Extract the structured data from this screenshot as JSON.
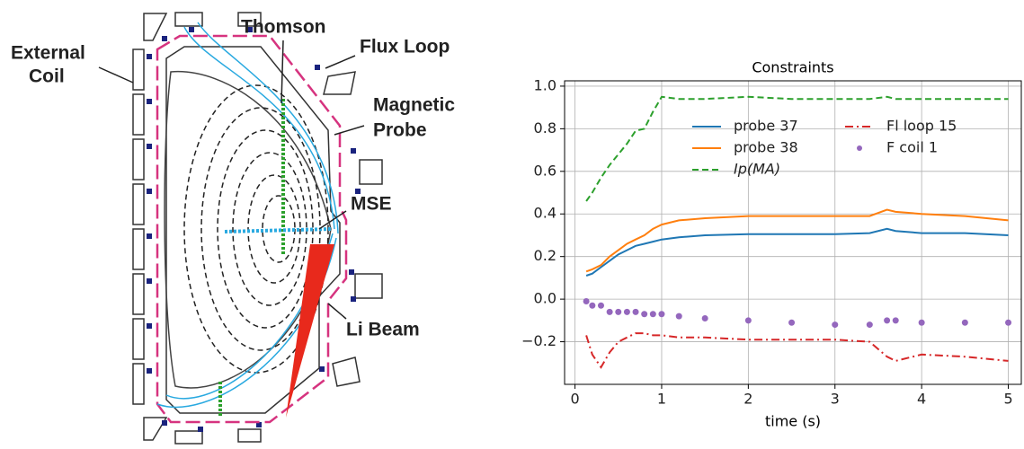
{
  "diagram": {
    "labels": [
      "External",
      "Coil",
      "Thomson",
      "Flux Loop",
      "Magnetic",
      "Probe",
      "MSE",
      "Li Beam"
    ]
  },
  "chart_data": {
    "type": "line",
    "title": "Constraints",
    "x_label": "time (s)",
    "x": [
      0.13,
      0.2,
      0.3,
      0.4,
      0.5,
      0.6,
      0.7,
      0.8,
      0.9,
      1.0,
      1.2,
      1.5,
      2.0,
      2.5,
      3.0,
      3.4,
      3.6,
      3.7,
      4.0,
      4.5,
      5.0
    ],
    "series": [
      {
        "name": "probe 37",
        "color": "#1f77b4",
        "style": "solid",
        "values": [
          0.11,
          0.12,
          0.15,
          0.18,
          0.21,
          0.23,
          0.25,
          0.26,
          0.27,
          0.28,
          0.29,
          0.3,
          0.305,
          0.305,
          0.305,
          0.31,
          0.33,
          0.32,
          0.31,
          0.31,
          0.3
        ]
      },
      {
        "name": "probe 38",
        "color": "#ff7f0e",
        "style": "solid",
        "values": [
          0.13,
          0.14,
          0.16,
          0.2,
          0.23,
          0.26,
          0.28,
          0.3,
          0.33,
          0.35,
          0.37,
          0.38,
          0.39,
          0.39,
          0.39,
          0.39,
          0.42,
          0.41,
          0.4,
          0.39,
          0.37
        ]
      },
      {
        "name": "Ip(MA)",
        "color": "#2ca02c",
        "style": "dashed",
        "values": [
          0.46,
          0.5,
          0.57,
          0.63,
          0.68,
          0.73,
          0.79,
          0.8,
          0.88,
          0.95,
          0.94,
          0.94,
          0.95,
          0.94,
          0.94,
          0.94,
          0.95,
          0.94,
          0.94,
          0.94,
          0.94
        ]
      },
      {
        "name": "Fl loop 15",
        "color": "#d62728",
        "style": "dashdot",
        "values": [
          -0.17,
          -0.26,
          -0.32,
          -0.25,
          -0.2,
          -0.18,
          -0.16,
          -0.16,
          -0.17,
          -0.17,
          -0.18,
          -0.18,
          -0.19,
          -0.19,
          -0.19,
          -0.2,
          -0.27,
          -0.29,
          -0.26,
          -0.27,
          -0.29
        ]
      },
      {
        "name": "F coil 1",
        "color": "#9467bd",
        "style": "dots",
        "values": [
          -0.01,
          -0.03,
          -0.03,
          -0.06,
          -0.06,
          -0.06,
          -0.06,
          -0.07,
          -0.07,
          -0.07,
          -0.08,
          -0.09,
          -0.1,
          -0.11,
          -0.12,
          -0.12,
          -0.1,
          -0.1,
          -0.11,
          -0.11,
          -0.11
        ]
      }
    ],
    "xlim": [
      -0.12,
      5.15
    ],
    "xticks": [
      0,
      1,
      2,
      3,
      4,
      5
    ],
    "ylim": [
      -0.4,
      1.025
    ],
    "yticks": [
      {
        "value": -0.2,
        "label": "−0.2"
      },
      {
        "value": 0,
        "label": "0.0"
      },
      0.2,
      0.4,
      0.6,
      0.8,
      {
        "value": 1,
        "label": "1.0"
      }
    ],
    "grid": true,
    "legend": "upper center"
  }
}
